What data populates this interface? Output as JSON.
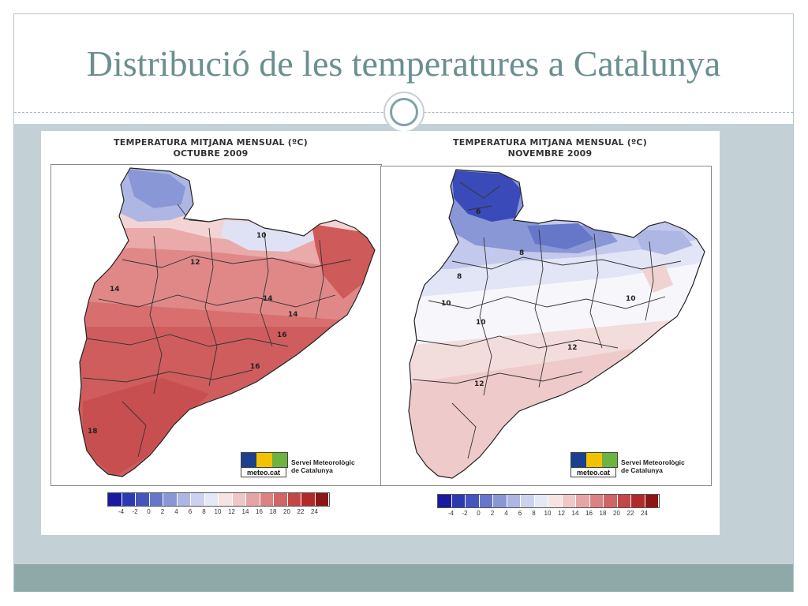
{
  "slide": {
    "title": "Distribució de les temperatures a Catalunya"
  },
  "maps": [
    {
      "header_line1": "TEMPERATURA MITJANA MENSUAL (ºC)",
      "header_line2": "OCTUBRE 2009",
      "logo_word": "meteo.cat",
      "logo_line1": "Servei Meteorològic",
      "logo_line2": "de Catalunya",
      "isotherm_labels": [
        "10",
        "12",
        "14",
        "14",
        "14",
        "16",
        "16",
        "18"
      ]
    },
    {
      "header_line1": "TEMPERATURA MITJANA MENSUAL (ºC)",
      "header_line2": "NOVEMBRE 2009",
      "logo_word": "meteo.cat",
      "logo_line1": "Servei Meteorològic",
      "logo_line2": "de Catalunya",
      "isotherm_labels": [
        "6",
        "8",
        "8",
        "10",
        "10",
        "10",
        "12",
        "12"
      ]
    }
  ],
  "legend": {
    "tick_labels": [
      "-4",
      "-2",
      "0",
      "2",
      "4",
      "6",
      "8",
      "10",
      "12",
      "14",
      "16",
      "18",
      "20",
      "22",
      "24"
    ],
    "colors": [
      "#1a1a9e",
      "#2b3ab0",
      "#4455bd",
      "#6677c9",
      "#8a97d6",
      "#aeb6e3",
      "#ccd1ee",
      "#e6e8f6",
      "#f6e3e3",
      "#efc7c7",
      "#e6a4a4",
      "#db8383",
      "#d06565",
      "#c24848",
      "#b02a2a",
      "#8c1515"
    ]
  },
  "logo_colors": [
    "#1c3f8f",
    "#f2c200",
    "#6db33f"
  ]
}
